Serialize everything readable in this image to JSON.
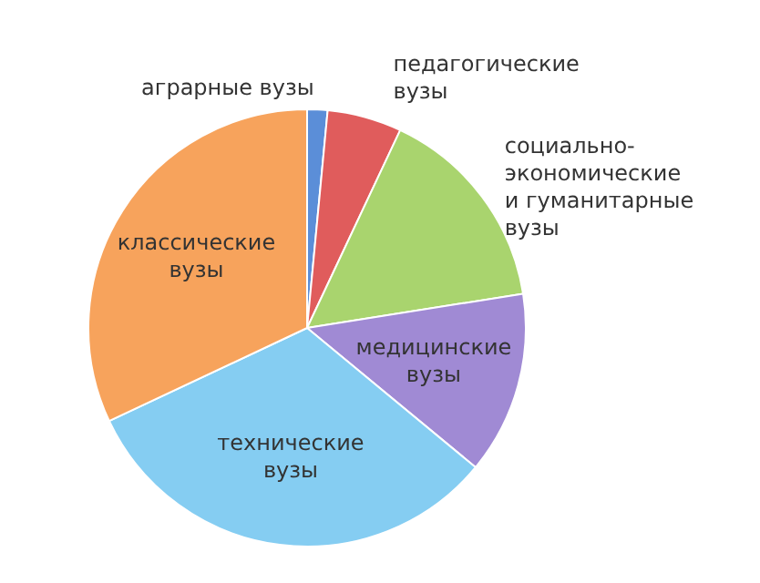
{
  "chart_data": {
    "type": "pie",
    "categories": [
      "аграрные вузы",
      "педагогические вузы",
      "социально-экономические и гуманитарные вузы",
      "медицинские вузы",
      "технические вузы",
      "классические вузы"
    ],
    "values": [
      1.5,
      5.5,
      15.5,
      13.5,
      32,
      32
    ],
    "colors": [
      "#5b8ed8",
      "#e05c5c",
      "#a9d46e",
      "#a08ad4",
      "#85cdf2",
      "#f7a35c"
    ],
    "legend": false
  }
}
